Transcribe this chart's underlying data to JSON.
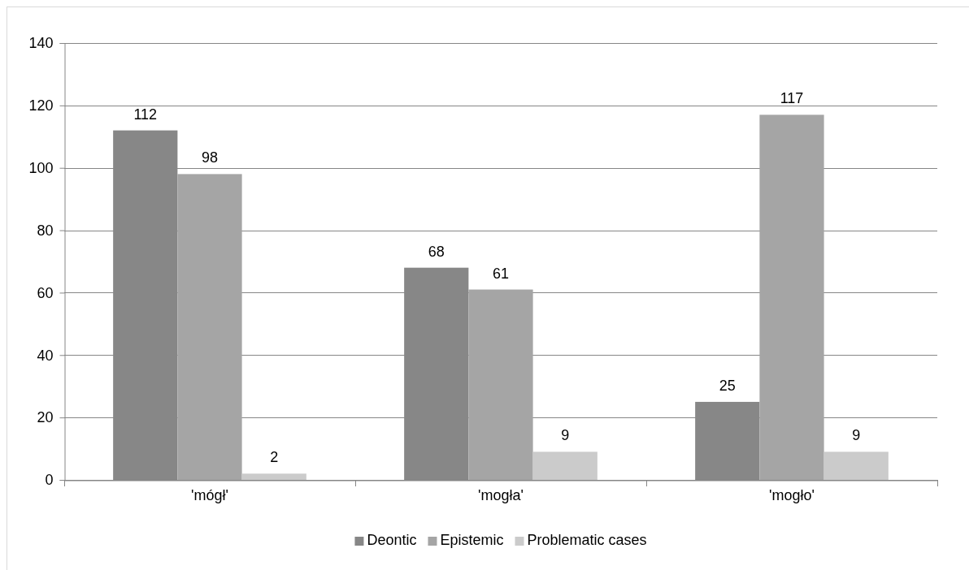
{
  "chart_data": {
    "type": "bar",
    "categories": [
      "'mógł'",
      "'mogła'",
      "'mogło'"
    ],
    "series": [
      {
        "name": "Deontic",
        "color": "#878787",
        "values": [
          112,
          68,
          25
        ]
      },
      {
        "name": "Epistemic",
        "color": "#a5a5a5",
        "values": [
          98,
          61,
          117
        ]
      },
      {
        "name": "Problematic cases",
        "color": "#cbcbcb",
        "values": [
          2,
          9,
          9
        ]
      }
    ],
    "ylim": [
      0,
      140
    ],
    "yticks": [
      0,
      20,
      40,
      60,
      80,
      100,
      120,
      140
    ],
    "grid": "y",
    "legend": "bottom",
    "data_labels": true
  }
}
